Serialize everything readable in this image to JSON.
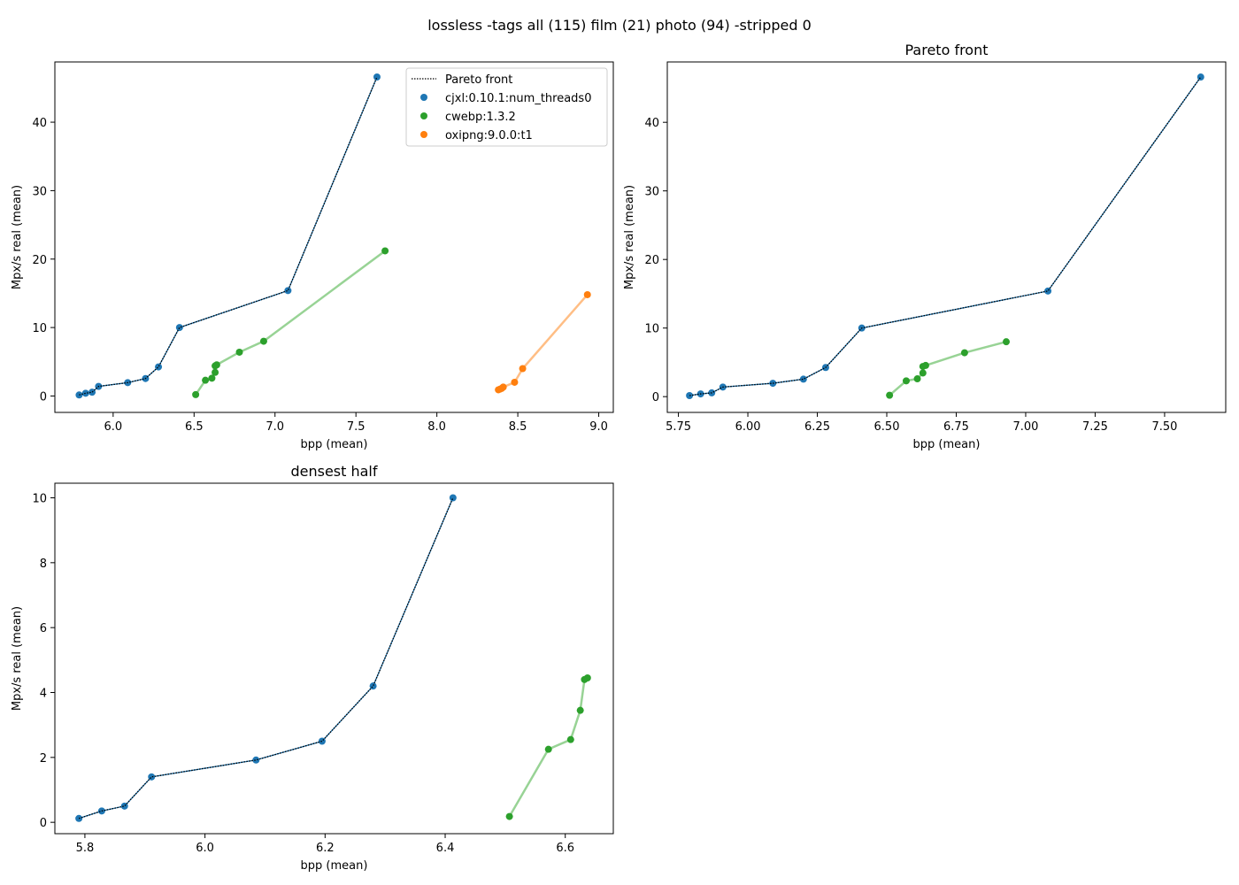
{
  "figure_title": "lossless -tags all (115) film (21) photo (94) -stripped 0",
  "colors": {
    "cjxl": "#1f77b4",
    "cwebp": "#2ca02c",
    "cwebp_line": "#98d395",
    "oxipng": "#ff7f0e",
    "oxipng_line": "#ffbe85",
    "pareto": "#000000"
  },
  "legend": {
    "placement": "top-right",
    "entries": [
      "Pareto front",
      "cjxl:0.10.1:num_threads0",
      "cwebp:1.3.2",
      "oxipng:9.0.0:t1"
    ]
  },
  "chart_data": [
    {
      "type": "scatter",
      "title": "",
      "xlabel": "bpp (mean)",
      "ylabel": "Mpx/s real (mean)",
      "xlim": [
        5.64,
        9.09
      ],
      "ylim": [
        -2.4,
        48.8
      ],
      "xticks": [
        "6.0",
        "6.5",
        "7.0",
        "7.5",
        "8.0",
        "8.5",
        "9.0"
      ],
      "yticks": [
        "0",
        "10",
        "20",
        "30",
        "40"
      ],
      "grid": false,
      "legend": "top-right",
      "series": [
        {
          "name": "cjxl:0.10.1:num_threads0",
          "x": [
            5.79,
            5.83,
            5.87,
            5.91,
            6.09,
            6.2,
            6.28,
            6.41,
            7.08,
            7.63
          ],
          "y": [
            0.15,
            0.4,
            0.55,
            1.4,
            1.95,
            2.55,
            4.25,
            10.0,
            15.4,
            46.6
          ]
        },
        {
          "name": "cwebp:1.3.2",
          "x": [
            6.51,
            6.57,
            6.61,
            6.63,
            6.63,
            6.64,
            6.78,
            6.93,
            7.68
          ],
          "y": [
            0.2,
            2.3,
            2.6,
            3.45,
            4.4,
            4.55,
            6.4,
            8.0,
            21.2
          ]
        },
        {
          "name": "oxipng:9.0.0:t1",
          "x": [
            8.38,
            8.39,
            8.4,
            8.41,
            8.48,
            8.53,
            8.93
          ],
          "y": [
            0.9,
            1.0,
            1.1,
            1.3,
            2.0,
            4.0,
            14.8
          ]
        },
        {
          "name": "Pareto front",
          "x": [
            5.79,
            5.83,
            5.87,
            5.91,
            6.09,
            6.2,
            6.28,
            6.41,
            7.08,
            7.63
          ],
          "y": [
            0.15,
            0.4,
            0.55,
            1.4,
            1.95,
            2.55,
            4.25,
            10.0,
            15.4,
            46.6
          ]
        }
      ]
    },
    {
      "type": "scatter",
      "title": "Pareto front",
      "xlabel": "bpp (mean)",
      "ylabel": "Mpx/s real (mean)",
      "xlim": [
        5.71,
        7.72
      ],
      "ylim": [
        -2.3,
        48.8
      ],
      "xticks": [
        "5.75",
        "6.00",
        "6.25",
        "6.50",
        "6.75",
        "7.00",
        "7.25",
        "7.50"
      ],
      "yticks": [
        "0",
        "10",
        "20",
        "30",
        "40"
      ],
      "grid": false,
      "series": [
        {
          "name": "cjxl:0.10.1:num_threads0",
          "x": [
            5.79,
            5.83,
            5.87,
            5.91,
            6.09,
            6.2,
            6.28,
            6.41,
            7.08,
            7.63
          ],
          "y": [
            0.15,
            0.4,
            0.55,
            1.4,
            1.95,
            2.55,
            4.25,
            10.0,
            15.4,
            46.6
          ]
        },
        {
          "name": "cwebp:1.3.2",
          "x": [
            6.51,
            6.57,
            6.61,
            6.63,
            6.63,
            6.64,
            6.78,
            6.93
          ],
          "y": [
            0.2,
            2.3,
            2.6,
            3.45,
            4.4,
            4.55,
            6.4,
            8.0
          ]
        },
        {
          "name": "Pareto front",
          "x": [
            5.79,
            5.83,
            5.87,
            5.91,
            6.09,
            6.2,
            6.28,
            6.41,
            7.08,
            7.63
          ],
          "y": [
            0.15,
            0.4,
            0.55,
            1.4,
            1.95,
            2.55,
            4.25,
            10.0,
            15.4,
            46.6
          ]
        }
      ]
    },
    {
      "type": "scatter",
      "title": "densest half",
      "xlabel": "bpp (mean)",
      "ylabel": "Mpx/s real (mean)",
      "xlim": [
        5.75,
        6.68
      ],
      "ylim": [
        -0.35,
        10.45
      ],
      "xticks": [
        "5.8",
        "6.0",
        "6.2",
        "6.4",
        "6.6"
      ],
      "yticks": [
        "0",
        "2",
        "4",
        "6",
        "8",
        "10"
      ],
      "grid": false,
      "series": [
        {
          "name": "cjxl:0.10.1:num_threads0",
          "x": [
            5.79,
            5.828,
            5.866,
            5.911,
            6.085,
            6.195,
            6.28,
            6.413
          ],
          "y": [
            0.12,
            0.35,
            0.5,
            1.4,
            1.92,
            2.5,
            4.2,
            10.0
          ]
        },
        {
          "name": "cwebp:1.3.2",
          "x": [
            6.507,
            6.572,
            6.609,
            6.625,
            6.632,
            6.637
          ],
          "y": [
            0.18,
            2.25,
            2.55,
            3.45,
            4.4,
            4.45
          ]
        },
        {
          "name": "Pareto front",
          "x": [
            5.79,
            5.828,
            5.866,
            5.911,
            6.085,
            6.195,
            6.28,
            6.413
          ],
          "y": [
            0.12,
            0.35,
            0.5,
            1.4,
            1.92,
            2.5,
            4.2,
            10.0
          ]
        }
      ]
    }
  ]
}
